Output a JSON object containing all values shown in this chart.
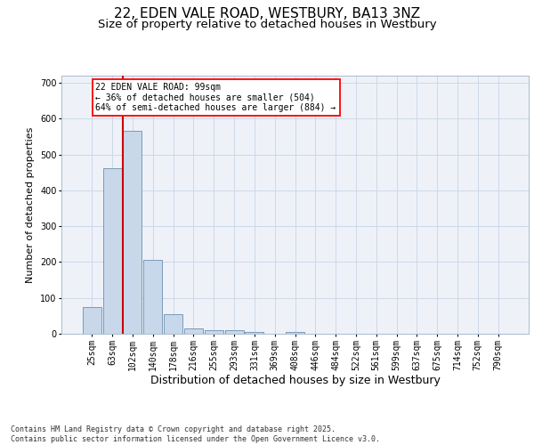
{
  "title": "22, EDEN VALE ROAD, WESTBURY, BA13 3NZ",
  "subtitle": "Size of property relative to detached houses in Westbury",
  "xlabel": "Distribution of detached houses by size in Westbury",
  "ylabel": "Number of detached properties",
  "categories": [
    "25sqm",
    "63sqm",
    "102sqm",
    "140sqm",
    "178sqm",
    "216sqm",
    "255sqm",
    "293sqm",
    "331sqm",
    "369sqm",
    "408sqm",
    "446sqm",
    "484sqm",
    "522sqm",
    "561sqm",
    "599sqm",
    "637sqm",
    "675sqm",
    "714sqm",
    "752sqm",
    "790sqm"
  ],
  "bar_values": [
    75,
    462,
    567,
    207,
    55,
    15,
    10,
    10,
    5,
    0,
    5,
    0,
    0,
    0,
    0,
    0,
    0,
    0,
    0,
    0,
    0
  ],
  "bar_color": "#c8d8ea",
  "bar_edge_color": "#6a8faf",
  "vline_color": "#cc0000",
  "vline_index": 1.5,
  "annotation_text": "22 EDEN VALE ROAD: 99sqm\n← 36% of detached houses are smaller (504)\n64% of semi-detached houses are larger (884) →",
  "ylim": [
    0,
    720
  ],
  "yticks": [
    0,
    100,
    200,
    300,
    400,
    500,
    600,
    700
  ],
  "grid_color": "#ccd8e8",
  "bg_color": "#eef2f8",
  "footer_text": "Contains HM Land Registry data © Crown copyright and database right 2025.\nContains public sector information licensed under the Open Government Licence v3.0.",
  "title_fontsize": 11,
  "subtitle_fontsize": 9.5,
  "xlabel_fontsize": 9,
  "ylabel_fontsize": 8,
  "tick_fontsize": 7,
  "annotation_fontsize": 7,
  "footer_fontsize": 6
}
